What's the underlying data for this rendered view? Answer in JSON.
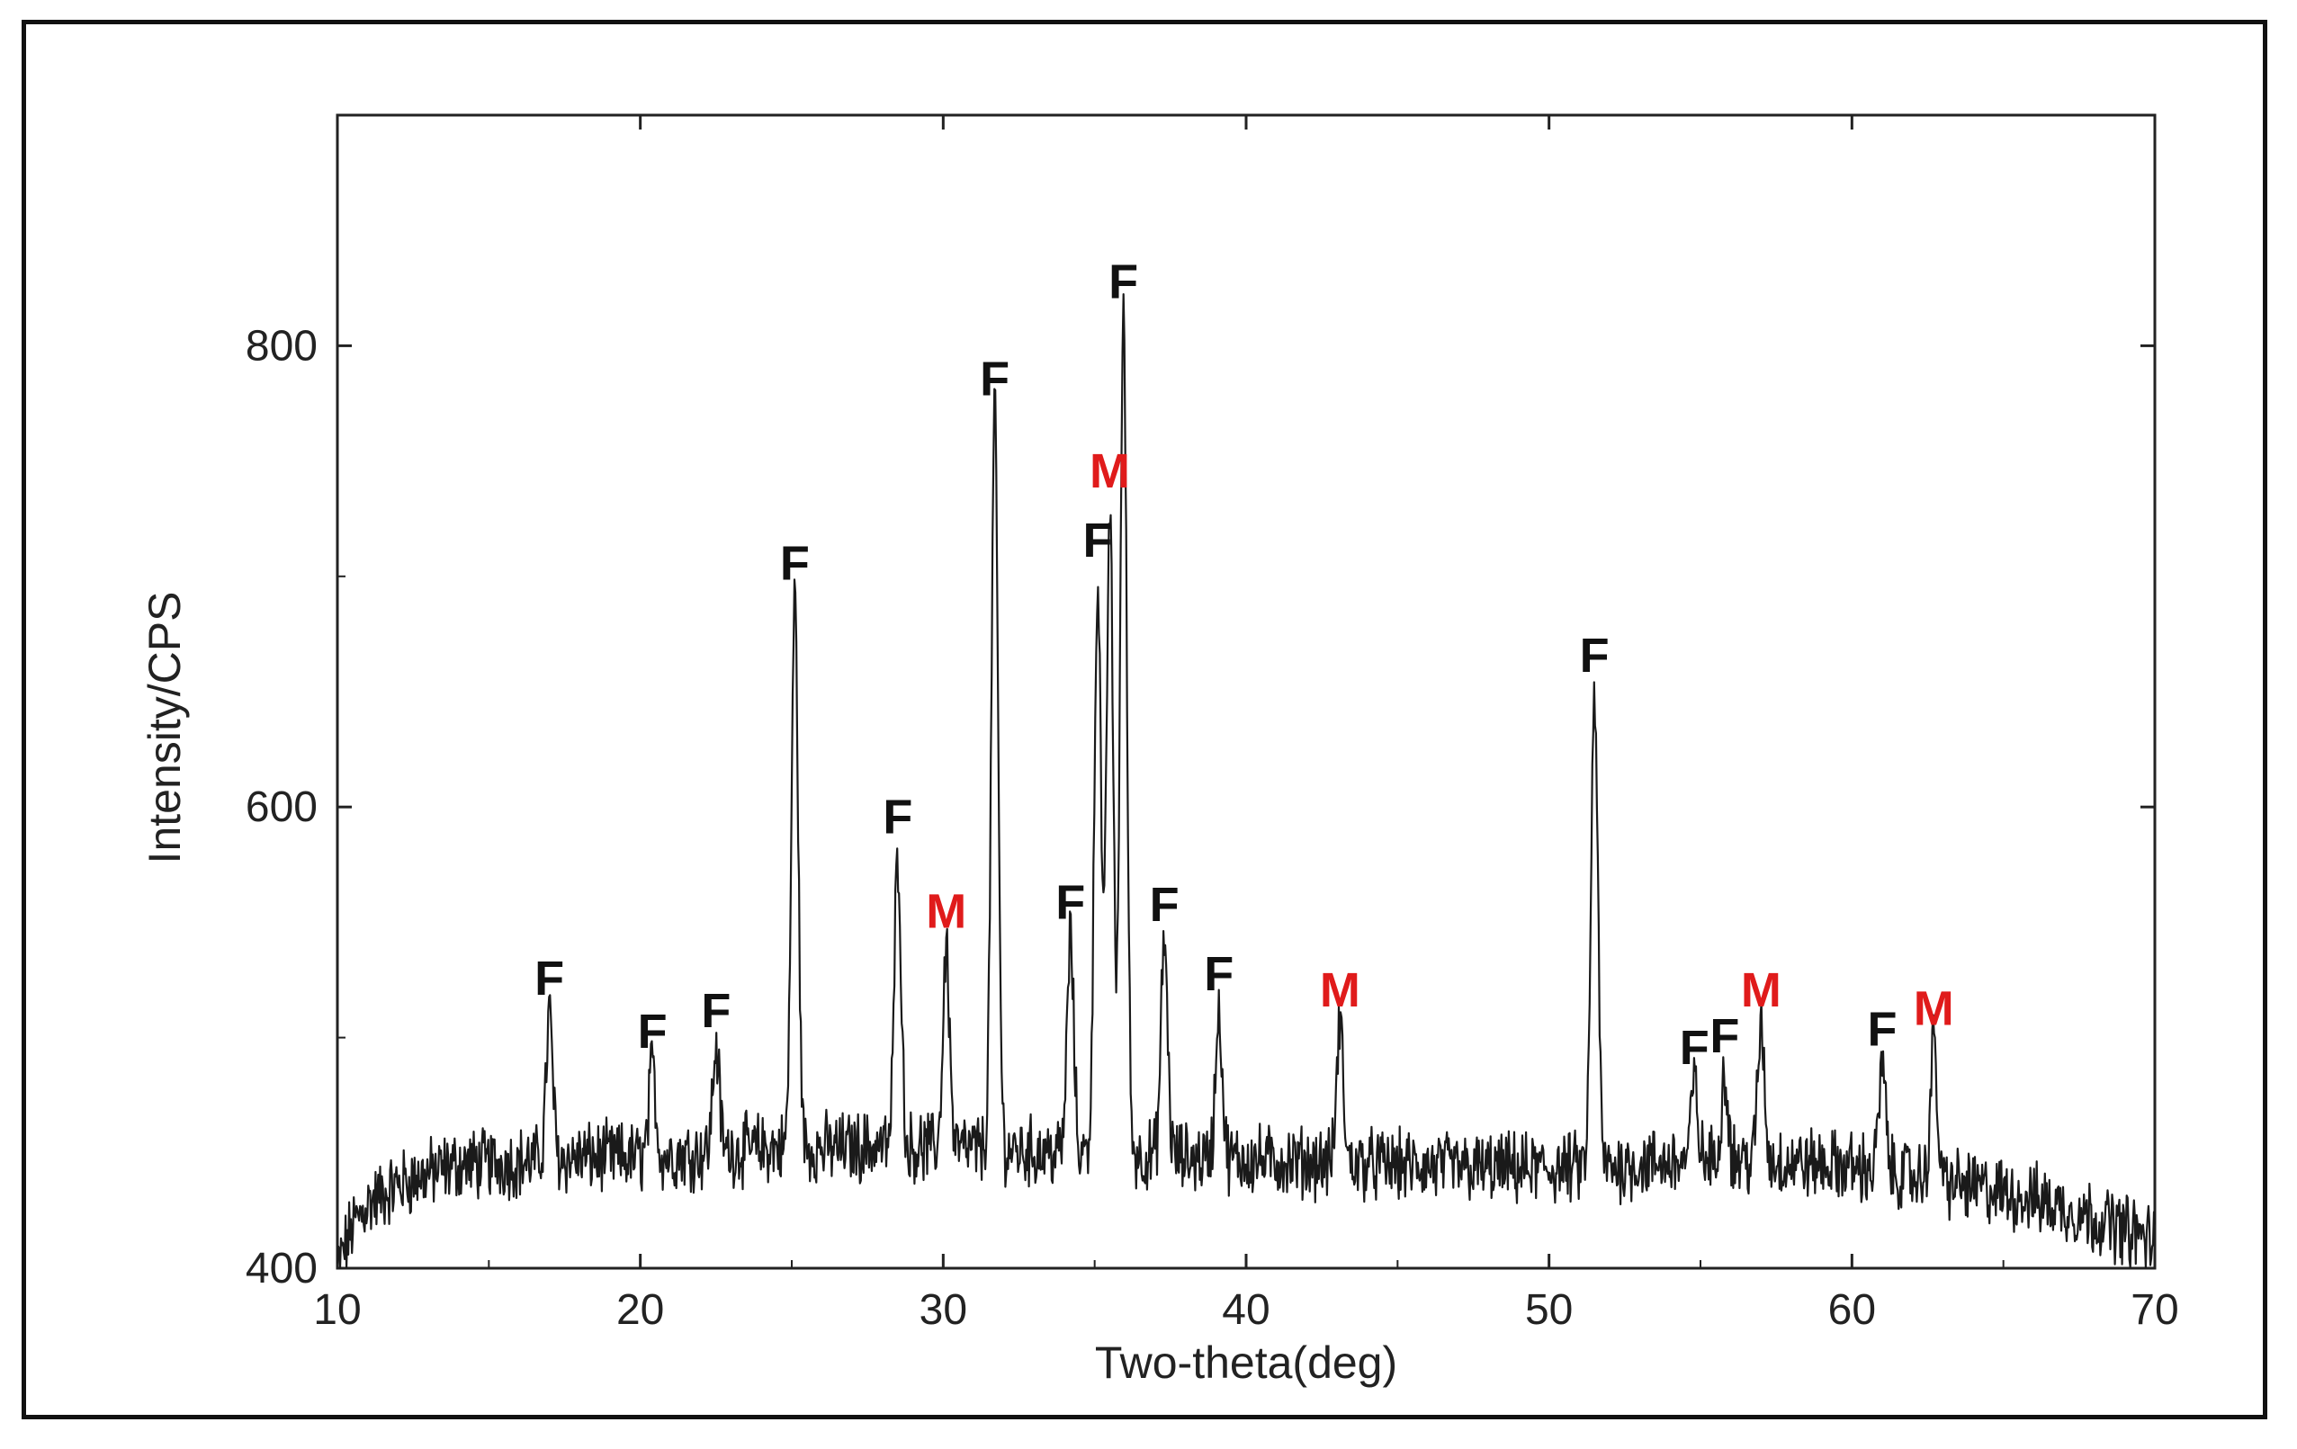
{
  "colors": {
    "ferrite": "#111111",
    "magnetite": "#e01b1b",
    "trace": "#1a1a1a",
    "axis": "#222222"
  },
  "chart_data": {
    "type": "line",
    "title": "",
    "xlabel": "Two-theta(deg)",
    "ylabel": "Intensity/CPS",
    "xlim": [
      10,
      70
    ],
    "ylim": [
      400,
      900
    ],
    "xticks": [
      10,
      20,
      30,
      40,
      50,
      60,
      70
    ],
    "yticks": [
      400,
      600,
      800
    ],
    "grid": false,
    "baseline": [
      [
        10,
        400
      ],
      [
        10.5,
        418
      ],
      [
        11,
        428
      ],
      [
        12,
        436
      ],
      [
        13,
        441
      ],
      [
        14,
        445
      ],
      [
        16,
        446
      ],
      [
        18,
        448
      ],
      [
        20,
        448
      ],
      [
        22,
        450
      ],
      [
        24,
        452
      ],
      [
        26,
        452
      ],
      [
        28,
        453
      ],
      [
        30,
        452
      ],
      [
        32,
        451
      ],
      [
        34,
        450
      ],
      [
        36,
        449
      ],
      [
        38,
        448
      ],
      [
        40,
        447
      ],
      [
        42,
        446
      ],
      [
        44,
        445
      ],
      [
        46,
        444
      ],
      [
        48,
        443
      ],
      [
        50,
        443
      ],
      [
        52,
        444
      ],
      [
        54,
        446
      ],
      [
        56,
        447
      ],
      [
        58,
        446
      ],
      [
        60,
        444
      ],
      [
        62,
        440
      ],
      [
        64,
        435
      ],
      [
        66,
        430
      ],
      [
        68,
        422
      ],
      [
        70,
        412
      ]
    ],
    "peaks": [
      {
        "x": 17.0,
        "y": 510,
        "label": "F"
      },
      {
        "x": 20.4,
        "y": 487,
        "label": "F"
      },
      {
        "x": 22.5,
        "y": 496,
        "label": "F"
      },
      {
        "x": 25.1,
        "y": 690,
        "label": "F"
      },
      {
        "x": 28.5,
        "y": 580,
        "label": "F"
      },
      {
        "x": 30.1,
        "y": 539,
        "label": "M"
      },
      {
        "x": 31.7,
        "y": 770,
        "label": "F"
      },
      {
        "x": 34.2,
        "y": 543,
        "label": "F"
      },
      {
        "x": 35.1,
        "y": 700,
        "label": "F"
      },
      {
        "x": 35.5,
        "y": 730,
        "label": "M"
      },
      {
        "x": 35.95,
        "y": 812,
        "label": "F"
      },
      {
        "x": 37.3,
        "y": 542,
        "label": "F"
      },
      {
        "x": 39.1,
        "y": 512,
        "label": "F"
      },
      {
        "x": 43.1,
        "y": 505,
        "label": "M"
      },
      {
        "x": 51.5,
        "y": 650,
        "label": "F"
      },
      {
        "x": 54.8,
        "y": 480,
        "label": "F"
      },
      {
        "x": 55.8,
        "y": 485,
        "label": "F"
      },
      {
        "x": 57.0,
        "y": 505,
        "label": "M"
      },
      {
        "x": 61.0,
        "y": 488,
        "label": "F"
      },
      {
        "x": 62.7,
        "y": 497,
        "label": "M"
      }
    ]
  }
}
